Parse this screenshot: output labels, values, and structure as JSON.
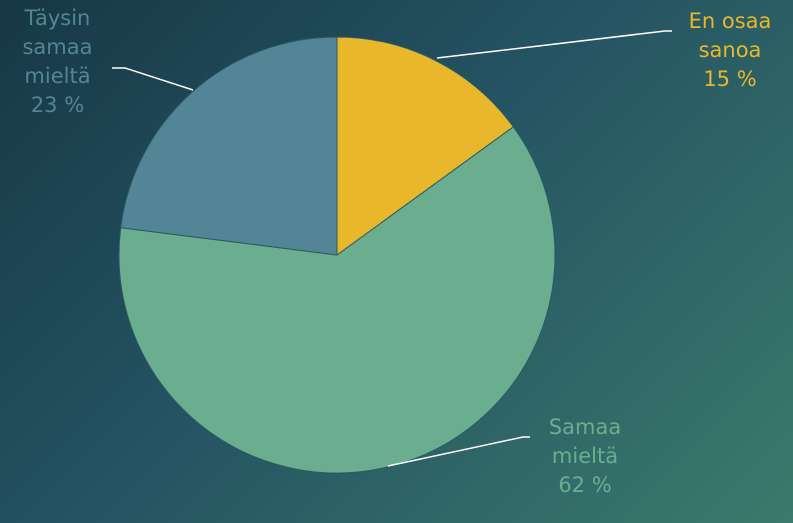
{
  "chart_data": {
    "type": "pie",
    "categories": [
      "En osaa sanoa",
      "Samaa mieltä",
      "Täysin samaa mieltä"
    ],
    "values": [
      15,
      62,
      23
    ],
    "value_labels": [
      "15 %",
      "62 %",
      "23 %"
    ],
    "colors": [
      "#e8b72b",
      "#6aae8f",
      "#548597"
    ]
  }
}
